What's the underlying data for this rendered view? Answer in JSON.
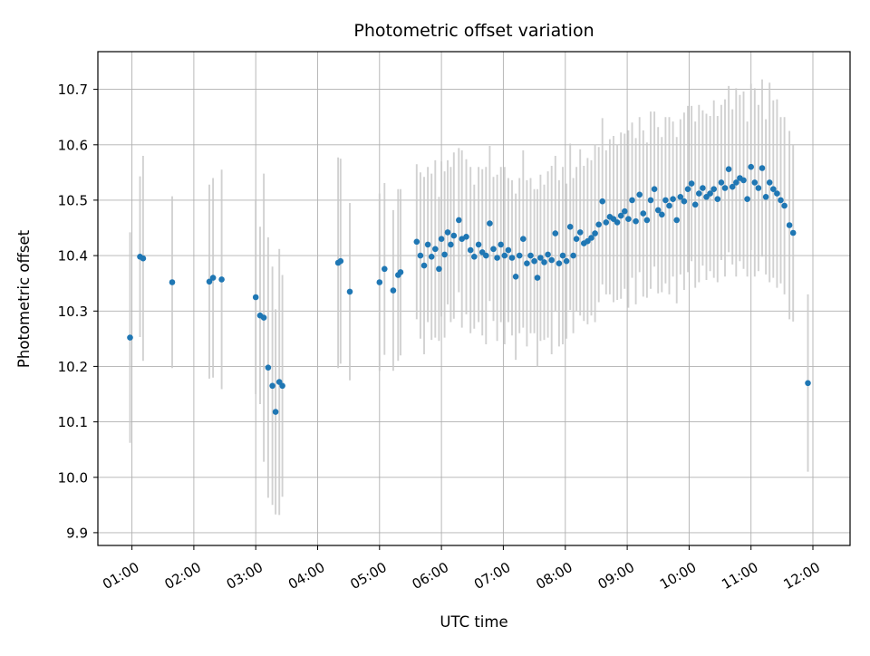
{
  "figure": {
    "background": "#ffffff"
  },
  "chart_data": {
    "type": "scatter",
    "title": "Photometric offset variation",
    "xlabel": "UTC time",
    "ylabel": "Photometric offset",
    "grid": true,
    "marker_color": "#1f77b4",
    "errorbar_color": "#c9c9c9",
    "xlim": [
      0.45,
      12.6
    ],
    "ylim": [
      9.877,
      10.768
    ],
    "xticks": [
      {
        "v": 1,
        "label": "01:00"
      },
      {
        "v": 2,
        "label": "02:00"
      },
      {
        "v": 3,
        "label": "03:00"
      },
      {
        "v": 4,
        "label": "04:00"
      },
      {
        "v": 5,
        "label": "05:00"
      },
      {
        "v": 6,
        "label": "06:00"
      },
      {
        "v": 7,
        "label": "07:00"
      },
      {
        "v": 8,
        "label": "08:00"
      },
      {
        "v": 9,
        "label": "09:00"
      },
      {
        "v": 10,
        "label": "10:00"
      },
      {
        "v": 11,
        "label": "11:00"
      },
      {
        "v": 12,
        "label": "12:00"
      }
    ],
    "yticks": [
      {
        "v": 9.9,
        "label": "9.9"
      },
      {
        "v": 10.0,
        "label": "10.0"
      },
      {
        "v": 10.1,
        "label": "10.1"
      },
      {
        "v": 10.2,
        "label": "10.2"
      },
      {
        "v": 10.3,
        "label": "10.3"
      },
      {
        "v": 10.4,
        "label": "10.4"
      },
      {
        "v": 10.5,
        "label": "10.5"
      },
      {
        "v": 10.6,
        "label": "10.6"
      },
      {
        "v": 10.7,
        "label": "10.7"
      }
    ],
    "points_format": "[utc_hour, photometric_offset, error]",
    "points": [
      [
        0.97,
        10.252,
        0.19
      ],
      [
        1.13,
        10.398,
        0.145
      ],
      [
        1.18,
        10.395,
        0.185
      ],
      [
        1.65,
        10.352,
        0.155
      ],
      [
        2.25,
        10.353,
        0.175
      ],
      [
        2.31,
        10.36,
        0.18
      ],
      [
        2.45,
        10.357,
        0.198
      ],
      [
        3.0,
        10.325,
        0.175
      ],
      [
        3.07,
        10.292,
        0.16
      ],
      [
        3.13,
        10.288,
        0.26
      ],
      [
        3.2,
        10.198,
        0.235
      ],
      [
        3.27,
        10.165,
        0.215
      ],
      [
        3.32,
        10.118,
        0.185
      ],
      [
        3.38,
        10.172,
        0.24
      ],
      [
        3.43,
        10.165,
        0.2
      ],
      [
        4.33,
        10.387,
        0.19
      ],
      [
        4.37,
        10.39,
        0.185
      ],
      [
        4.52,
        10.335,
        0.16
      ],
      [
        5.0,
        10.352,
        0.16
      ],
      [
        5.08,
        10.376,
        0.155
      ],
      [
        5.22,
        10.337,
        0.145
      ],
      [
        5.3,
        10.365,
        0.155
      ],
      [
        5.34,
        10.37,
        0.15
      ],
      [
        5.6,
        10.425,
        0.14
      ],
      [
        5.66,
        10.4,
        0.15
      ],
      [
        5.72,
        10.382,
        0.16
      ],
      [
        5.78,
        10.42,
        0.14
      ],
      [
        5.84,
        10.398,
        0.15
      ],
      [
        5.9,
        10.412,
        0.16
      ],
      [
        5.96,
        10.376,
        0.13
      ],
      [
        6.0,
        10.43,
        0.14
      ],
      [
        6.05,
        10.402,
        0.15
      ],
      [
        6.1,
        10.442,
        0.13
      ],
      [
        6.15,
        10.42,
        0.14
      ],
      [
        6.2,
        10.436,
        0.15
      ],
      [
        6.28,
        10.464,
        0.13
      ],
      [
        6.33,
        10.43,
        0.16
      ],
      [
        6.4,
        10.434,
        0.14
      ],
      [
        6.47,
        10.41,
        0.15
      ],
      [
        6.53,
        10.398,
        0.13
      ],
      [
        6.6,
        10.42,
        0.14
      ],
      [
        6.66,
        10.406,
        0.15
      ],
      [
        6.72,
        10.4,
        0.16
      ],
      [
        6.78,
        10.458,
        0.14
      ],
      [
        6.84,
        10.412,
        0.13
      ],
      [
        6.9,
        10.396,
        0.15
      ],
      [
        6.96,
        10.42,
        0.14
      ],
      [
        7.02,
        10.4,
        0.16
      ],
      [
        7.08,
        10.41,
        0.13
      ],
      [
        7.14,
        10.396,
        0.14
      ],
      [
        7.2,
        10.362,
        0.15
      ],
      [
        7.26,
        10.4,
        0.14
      ],
      [
        7.32,
        10.43,
        0.16
      ],
      [
        7.38,
        10.386,
        0.15
      ],
      [
        7.44,
        10.4,
        0.14
      ],
      [
        7.5,
        10.39,
        0.13
      ],
      [
        7.55,
        10.36,
        0.16
      ],
      [
        7.6,
        10.396,
        0.15
      ],
      [
        7.66,
        10.388,
        0.14
      ],
      [
        7.72,
        10.402,
        0.15
      ],
      [
        7.78,
        10.392,
        0.17
      ],
      [
        7.84,
        10.44,
        0.14
      ],
      [
        7.9,
        10.386,
        0.15
      ],
      [
        7.96,
        10.4,
        0.16
      ],
      [
        8.02,
        10.39,
        0.14
      ],
      [
        8.08,
        10.452,
        0.15
      ],
      [
        8.13,
        10.4,
        0.14
      ],
      [
        8.18,
        10.43,
        0.13
      ],
      [
        8.24,
        10.442,
        0.15
      ],
      [
        8.3,
        10.422,
        0.14
      ],
      [
        8.36,
        10.426,
        0.15
      ],
      [
        8.42,
        10.432,
        0.14
      ],
      [
        8.48,
        10.44,
        0.16
      ],
      [
        8.54,
        10.456,
        0.14
      ],
      [
        8.6,
        10.498,
        0.15
      ],
      [
        8.66,
        10.46,
        0.13
      ],
      [
        8.72,
        10.47,
        0.14
      ],
      [
        8.78,
        10.466,
        0.15
      ],
      [
        8.84,
        10.46,
        0.14
      ],
      [
        8.9,
        10.472,
        0.15
      ],
      [
        8.96,
        10.48,
        0.14
      ],
      [
        9.02,
        10.466,
        0.16
      ],
      [
        9.08,
        10.5,
        0.14
      ],
      [
        9.14,
        10.462,
        0.15
      ],
      [
        9.2,
        10.51,
        0.14
      ],
      [
        9.26,
        10.476,
        0.15
      ],
      [
        9.32,
        10.464,
        0.14
      ],
      [
        9.38,
        10.5,
        0.16
      ],
      [
        9.44,
        10.52,
        0.14
      ],
      [
        9.5,
        10.482,
        0.15
      ],
      [
        9.56,
        10.474,
        0.14
      ],
      [
        9.62,
        10.5,
        0.15
      ],
      [
        9.68,
        10.49,
        0.16
      ],
      [
        9.74,
        10.502,
        0.14
      ],
      [
        9.8,
        10.464,
        0.15
      ],
      [
        9.86,
        10.506,
        0.14
      ],
      [
        9.92,
        10.498,
        0.16
      ],
      [
        9.98,
        10.52,
        0.15
      ],
      [
        10.04,
        10.53,
        0.14
      ],
      [
        10.1,
        10.492,
        0.15
      ],
      [
        10.16,
        10.512,
        0.16
      ],
      [
        10.22,
        10.522,
        0.14
      ],
      [
        10.28,
        10.506,
        0.15
      ],
      [
        10.34,
        10.512,
        0.14
      ],
      [
        10.4,
        10.52,
        0.16
      ],
      [
        10.46,
        10.502,
        0.15
      ],
      [
        10.52,
        10.532,
        0.14
      ],
      [
        10.58,
        10.522,
        0.16
      ],
      [
        10.64,
        10.556,
        0.15
      ],
      [
        10.7,
        10.524,
        0.14
      ],
      [
        10.76,
        10.532,
        0.17
      ],
      [
        10.82,
        10.54,
        0.15
      ],
      [
        10.88,
        10.536,
        0.16
      ],
      [
        10.94,
        10.502,
        0.14
      ],
      [
        11.0,
        10.56,
        0.15
      ],
      [
        11.06,
        10.532,
        0.17
      ],
      [
        11.12,
        10.522,
        0.15
      ],
      [
        11.18,
        10.558,
        0.16
      ],
      [
        11.24,
        10.506,
        0.14
      ],
      [
        11.3,
        10.532,
        0.18
      ],
      [
        11.36,
        10.52,
        0.16
      ],
      [
        11.42,
        10.512,
        0.17
      ],
      [
        11.48,
        10.5,
        0.15
      ],
      [
        11.54,
        10.49,
        0.16
      ],
      [
        11.62,
        10.455,
        0.17
      ],
      [
        11.68,
        10.441,
        0.16
      ],
      [
        11.92,
        10.17,
        0.16
      ]
    ]
  }
}
